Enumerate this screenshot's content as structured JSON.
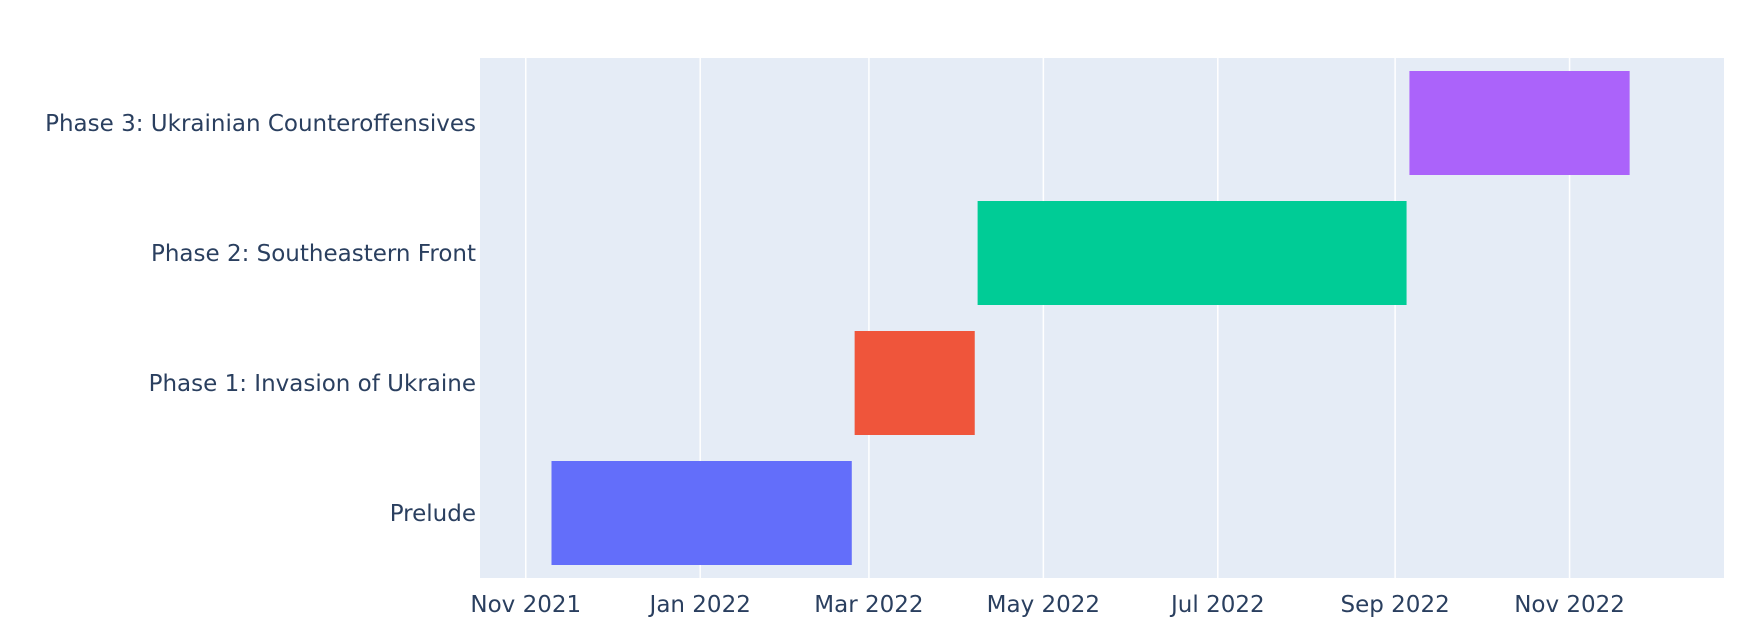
{
  "chart_data": {
    "type": "bar",
    "orientation": "horizontal",
    "title": "",
    "xlabel": "",
    "ylabel": "",
    "x_axis_type": "date",
    "xlim": [
      "2021-10-16",
      "2022-12-25"
    ],
    "x_ticks": [
      {
        "date": "2021-11-01",
        "label": "Nov 2021"
      },
      {
        "date": "2022-01-01",
        "label": "Jan 2022"
      },
      {
        "date": "2022-03-01",
        "label": "Mar 2022"
      },
      {
        "date": "2022-05-01",
        "label": "May 2022"
      },
      {
        "date": "2022-07-01",
        "label": "Jul 2022"
      },
      {
        "date": "2022-09-01",
        "label": "Sep 2022"
      },
      {
        "date": "2022-11-01",
        "label": "Nov 2022"
      }
    ],
    "categories": [
      "Prelude",
      "Phase 1: Invasion of Ukraine",
      "Phase 2: Southeastern Front",
      "Phase 3: Ukrainian Counteroffensives"
    ],
    "tasks": [
      {
        "name": "Prelude",
        "start": "2021-11-10",
        "end": "2022-02-23",
        "color": "#636efa"
      },
      {
        "name": "Phase 1: Invasion of Ukraine",
        "start": "2022-02-24",
        "end": "2022-04-07",
        "color": "#ef553b"
      },
      {
        "name": "Phase 2: Southeastern Front",
        "start": "2022-04-08",
        "end": "2022-09-05",
        "color": "#00cc96"
      },
      {
        "name": "Phase 3: Ukrainian Counteroffensives",
        "start": "2022-09-06",
        "end": "2022-11-22",
        "color": "#ab63fa"
      }
    ],
    "grid": true,
    "legend": "none",
    "plot_background": "#e5ecf6",
    "grid_color": "#ffffff",
    "text_color": "#2a3f5f"
  }
}
